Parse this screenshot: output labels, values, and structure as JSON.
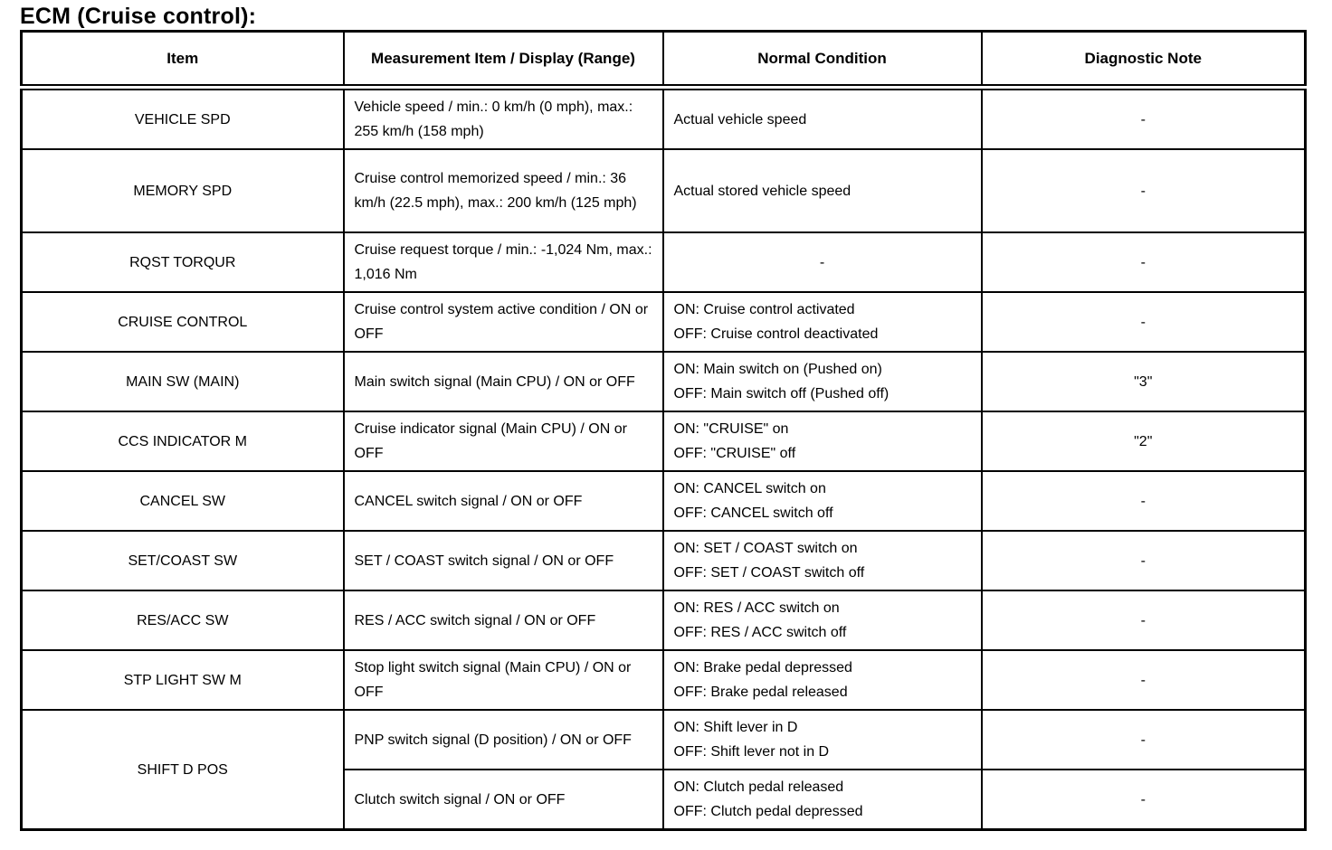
{
  "page": {
    "title": "ECM (Cruise control):"
  },
  "table": {
    "headers": [
      "Item",
      "Measurement Item / Display (Range)",
      "Normal Condition",
      "Diagnostic Note"
    ],
    "rows": [
      {
        "item": "VEHICLE SPD",
        "measurement": "Vehicle speed / min.: 0 km/h (0 mph), max.: 255 km/h (158 mph)",
        "normal": "Actual vehicle speed",
        "note": "-"
      },
      {
        "item": "MEMORY SPD",
        "measurement": "Cruise control memorized speed / min.: 36 km/h (22.5 mph), max.: 200 km/h (125 mph)",
        "normal": "Actual stored vehicle speed",
        "note": "-"
      },
      {
        "item": "RQST TORQUR",
        "measurement": "Cruise request torque / min.: -1,024 Nm, max.: 1,016 Nm",
        "normal": "-",
        "note": "-"
      },
      {
        "item": "CRUISE CONTROL",
        "measurement": "Cruise control system active condition / ON or OFF",
        "normal": "ON: Cruise control activated\nOFF: Cruise control deactivated",
        "note": "-"
      },
      {
        "item": "MAIN SW (MAIN)",
        "measurement": "Main switch signal (Main CPU) / ON or OFF",
        "normal": "ON: Main switch on (Pushed on)\nOFF: Main switch off (Pushed off)",
        "note": "\"3\""
      },
      {
        "item": "CCS INDICATOR M",
        "measurement": "Cruise indicator signal (Main CPU) / ON or OFF",
        "normal": "ON: \"CRUISE\" on\nOFF: \"CRUISE\" off",
        "note": "\"2\""
      },
      {
        "item": "CANCEL SW",
        "measurement": "CANCEL switch signal / ON or OFF",
        "normal": "ON: CANCEL switch on\nOFF: CANCEL switch off",
        "note": "-"
      },
      {
        "item": "SET/COAST SW",
        "measurement": "SET / COAST switch signal / ON or OFF",
        "normal": "ON: SET / COAST switch on\nOFF: SET / COAST switch off",
        "note": "-"
      },
      {
        "item": "RES/ACC SW",
        "measurement": "RES / ACC switch signal / ON or OFF",
        "normal": "ON: RES / ACC switch on\nOFF: RES / ACC switch off",
        "note": "-"
      },
      {
        "item": "STP LIGHT SW M",
        "measurement": "Stop light switch signal (Main CPU) / ON or OFF",
        "normal": "ON: Brake pedal depressed\nOFF: Brake pedal released",
        "note": "-"
      },
      {
        "item": "SHIFT D POS",
        "measurement": "PNP switch signal (D position) / ON or OFF",
        "normal": "ON: Shift lever in D\nOFF: Shift lever not in D",
        "note": "-"
      },
      {
        "measurement": "Clutch switch signal / ON or OFF",
        "normal": "ON: Clutch pedal released\nOFF: Clutch pedal depressed",
        "note": "-"
      }
    ]
  }
}
